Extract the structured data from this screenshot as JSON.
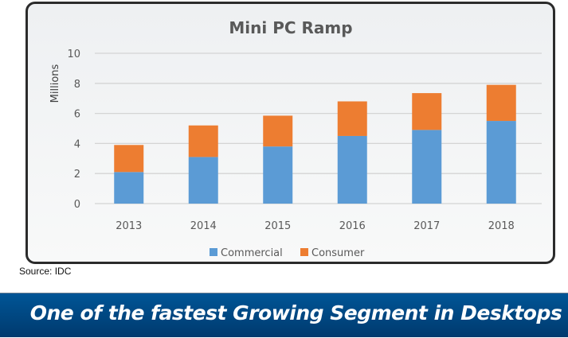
{
  "chart_data": {
    "type": "bar",
    "stacked": true,
    "title": "Mini PC Ramp",
    "xlabel": "",
    "ylabel": "Millions",
    "ylim": [
      0,
      10
    ],
    "yticks": [
      0,
      2,
      4,
      6,
      8,
      10
    ],
    "grid": true,
    "legend_position": "bottom",
    "categories": [
      "2013",
      "2014",
      "2015",
      "2016",
      "2017",
      "2018"
    ],
    "series": [
      {
        "name": "Commercial",
        "color": "#5b9bd5",
        "values": [
          2.1,
          3.1,
          3.8,
          4.5,
          4.9,
          5.5
        ]
      },
      {
        "name": "Consumer",
        "color": "#ed7d31",
        "values": [
          1.8,
          2.1,
          2.05,
          2.3,
          2.45,
          2.4
        ]
      }
    ]
  },
  "source": "Source: IDC",
  "banner": {
    "text": "One of the fastest Growing Segment in Desktops"
  }
}
